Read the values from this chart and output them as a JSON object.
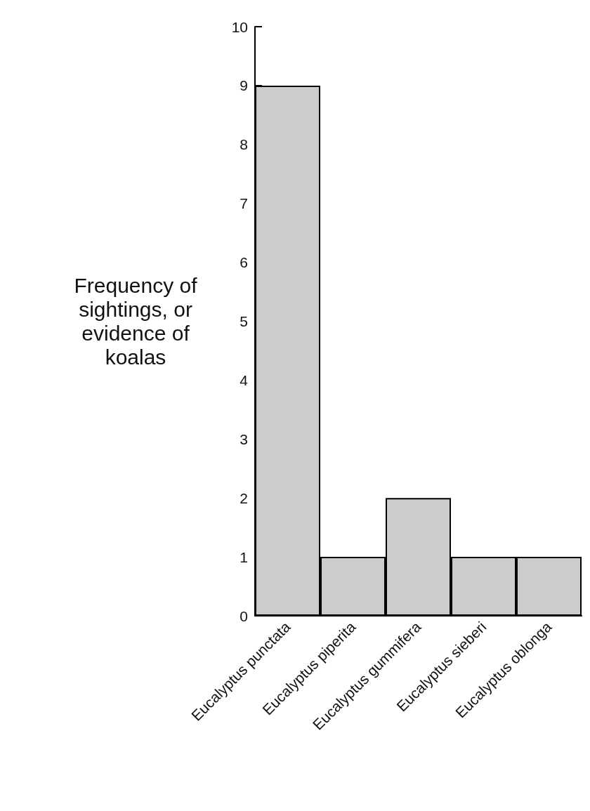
{
  "chart_data": {
    "type": "bar",
    "ylabel": "Frequency of\nsightings, or\nevidence of\nkoalas",
    "categories": [
      "Eucalyptus punctata",
      "Eucalyptus piperita",
      "Eucalyptus gummifera",
      "Eucalyptus sieberi",
      "Eucalyptus oblonga"
    ],
    "values": [
      9,
      1,
      2,
      1,
      1
    ],
    "color": "#cccccc",
    "ylim": [
      0,
      10
    ],
    "yticks": [
      0,
      1,
      2,
      3,
      4,
      5,
      6,
      7,
      8,
      9,
      10
    ],
    "grid": false
  }
}
